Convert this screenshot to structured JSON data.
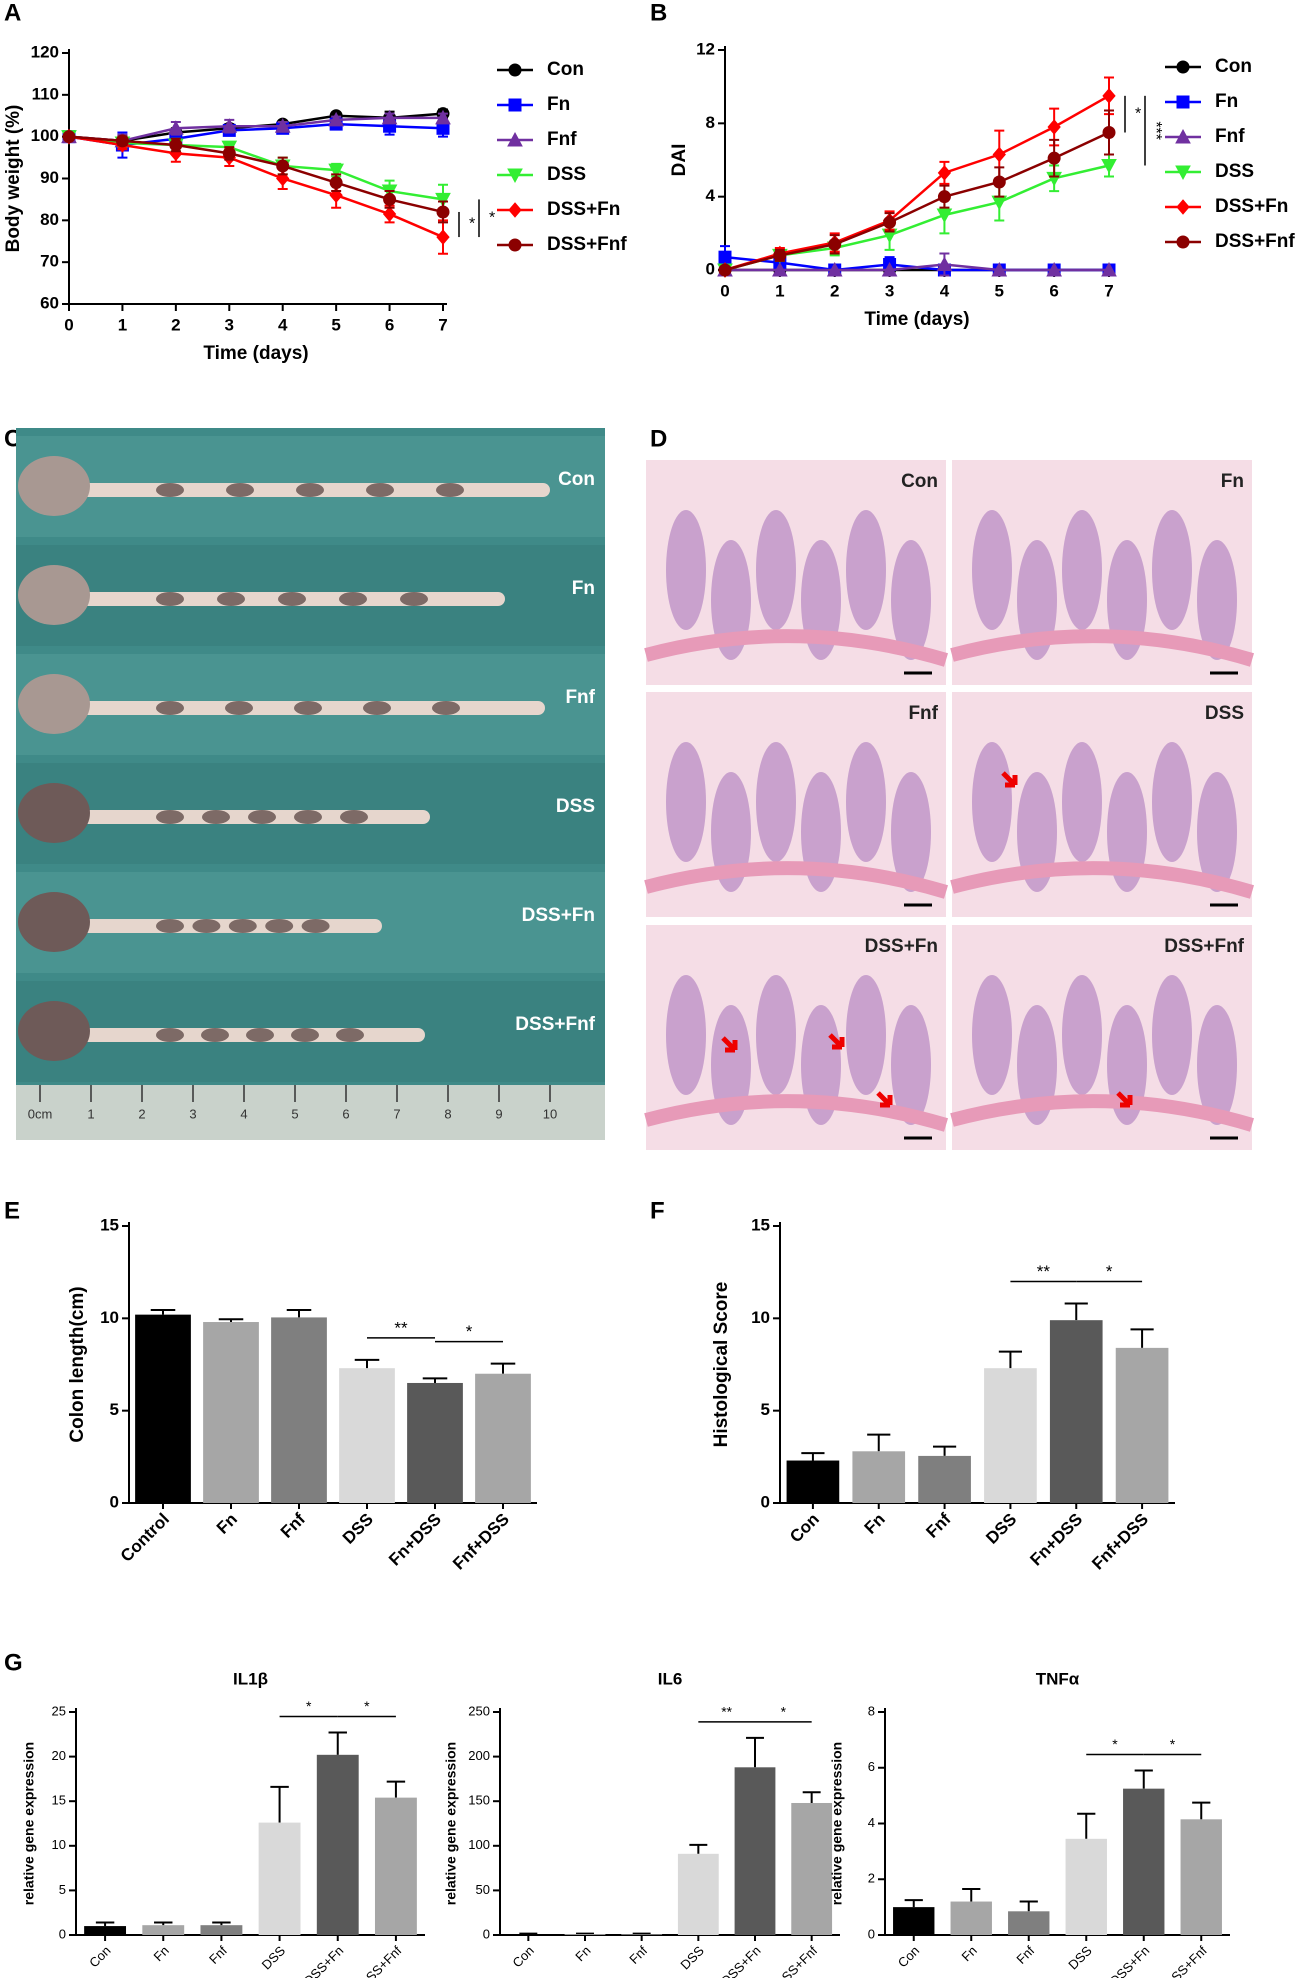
{
  "chart_data": [
    {
      "type": "line",
      "panel": "A",
      "xlabel": "Time (days)",
      "ylabel": "Body weight (%)",
      "x": [
        0,
        1,
        2,
        3,
        4,
        5,
        6,
        7
      ],
      "xlim": [
        0,
        7
      ],
      "xticks": [
        0,
        1,
        2,
        3,
        4,
        5,
        6,
        7
      ],
      "ylim": [
        60,
        120
      ],
      "yticks": [
        60,
        70,
        80,
        90,
        100,
        110,
        120
      ],
      "grid": false,
      "legend": "right",
      "series": [
        {
          "name": "Con",
          "color": "#000000",
          "marker": "circle",
          "values": [
            100,
            99,
            101,
            102,
            103,
            105,
            104.5,
            105.5
          ],
          "errors": [
            0.5,
            1,
            1,
            1,
            0.5,
            0.5,
            1.5,
            1
          ]
        },
        {
          "name": "Fn",
          "color": "#0000ff",
          "marker": "square",
          "values": [
            100,
            98,
            99.5,
            101.5,
            102,
            103,
            102.5,
            102
          ],
          "errors": [
            0.5,
            3,
            1.5,
            1,
            1,
            0.8,
            2,
            2
          ]
        },
        {
          "name": "Fnf",
          "color": "#7030a0",
          "marker": "triangle",
          "values": [
            100,
            99,
            102,
            102.5,
            102.5,
            104,
            104.5,
            104.5
          ],
          "errors": [
            0.5,
            1.5,
            1.5,
            1.5,
            1,
            0.8,
            1,
            1
          ]
        },
        {
          "name": "DSS",
          "color": "#33ee33",
          "marker": "triangle-down",
          "values": [
            100,
            98.5,
            98,
            97.5,
            93,
            92,
            87,
            85
          ],
          "errors": [
            0.5,
            1,
            1.5,
            1,
            2,
            1.5,
            2.5,
            3.5
          ]
        },
        {
          "name": "DSS+Fn",
          "color": "#ff0000",
          "marker": "diamond",
          "values": [
            100,
            98,
            96,
            95,
            90,
            86,
            81.5,
            76
          ],
          "errors": [
            0.5,
            1,
            2,
            2,
            2.5,
            3,
            2,
            4
          ]
        },
        {
          "name": "DSS+Fnf",
          "color": "#8b0000",
          "marker": "circle",
          "values": [
            100,
            99,
            98,
            96,
            93,
            89,
            85,
            82
          ],
          "errors": [
            0.5,
            1,
            1.5,
            1.5,
            2,
            2,
            2,
            2.5
          ]
        }
      ],
      "annotations": [
        {
          "text": "*",
          "between": [
            "DSS+Fn",
            "DSS+Fnf"
          ]
        },
        {
          "text": "*",
          "between": [
            "DSS+Fn",
            "DSS"
          ]
        }
      ]
    },
    {
      "type": "line",
      "panel": "B",
      "xlabel": "Time (days)",
      "ylabel": "DAI",
      "x": [
        0,
        1,
        2,
        3,
        4,
        5,
        6,
        7
      ],
      "xlim": [
        0,
        7
      ],
      "xticks": [
        0,
        1,
        2,
        3,
        4,
        5,
        6,
        7
      ],
      "ylim": [
        0,
        12
      ],
      "yticks": [
        0,
        4,
        8,
        12
      ],
      "grid": false,
      "legend": "right",
      "series": [
        {
          "name": "Con",
          "color": "#000000",
          "marker": "circle",
          "values": [
            0,
            0,
            0,
            0,
            0,
            0,
            0,
            0
          ],
          "errors": [
            0,
            0,
            0,
            0,
            0,
            0,
            0,
            0
          ]
        },
        {
          "name": "Fn",
          "color": "#0000ff",
          "marker": "square",
          "values": [
            0.7,
            0.4,
            0,
            0.3,
            0,
            0,
            0,
            0
          ],
          "errors": [
            0.6,
            0.4,
            0,
            0.4,
            0,
            0,
            0,
            0
          ]
        },
        {
          "name": "Fnf",
          "color": "#7030a0",
          "marker": "triangle",
          "values": [
            0,
            0,
            0,
            0,
            0.3,
            0,
            0,
            0
          ],
          "errors": [
            0,
            0,
            0,
            0,
            0.6,
            0,
            0,
            0
          ]
        },
        {
          "name": "DSS",
          "color": "#33ee33",
          "marker": "triangle-down",
          "values": [
            0,
            0.8,
            1.2,
            1.9,
            3,
            3.7,
            5,
            5.7
          ],
          "errors": [
            0,
            0.3,
            0.4,
            0.8,
            1,
            1,
            0.7,
            0.6
          ]
        },
        {
          "name": "DSS+Fn",
          "color": "#ff0000",
          "marker": "diamond",
          "values": [
            0,
            0.9,
            1.5,
            2.7,
            5.3,
            6.3,
            7.8,
            9.5
          ],
          "errors": [
            0,
            0.3,
            0.5,
            0.5,
            0.6,
            1.3,
            1,
            1
          ]
        },
        {
          "name": "DSS+Fnf",
          "color": "#8b0000",
          "marker": "circle",
          "values": [
            0,
            0.8,
            1.4,
            2.6,
            4,
            4.8,
            6.1,
            7.5
          ],
          "errors": [
            0,
            0.3,
            0.5,
            0.5,
            0.6,
            0.8,
            1,
            1.2
          ]
        }
      ],
      "annotations": [
        {
          "text": "*",
          "between": [
            "DSS+Fn",
            "DSS+Fnf"
          ]
        },
        {
          "text": "***",
          "between": [
            "DSS+Fn",
            "DSS"
          ]
        }
      ]
    },
    {
      "type": "bar",
      "panel": "E",
      "ylabel": "Colon length(cm)",
      "categories": [
        "Control",
        "Fn",
        "Fnf",
        "DSS",
        "Fn+DSS",
        "Fnf+DSS"
      ],
      "values": [
        10.2,
        9.8,
        10.05,
        7.3,
        6.5,
        7.0
      ],
      "errors": [
        0.25,
        0.15,
        0.4,
        0.45,
        0.25,
        0.55
      ],
      "colors": [
        "#000000",
        "#a6a6a6",
        "#7f7f7f",
        "#d9d9d9",
        "#595959",
        "#a6a6a6"
      ],
      "ylim": [
        0,
        15
      ],
      "yticks": [
        0,
        5,
        10,
        15
      ],
      "grid": false,
      "annotations": [
        {
          "text": "**",
          "between": [
            "DSS",
            "Fn+DSS"
          ]
        },
        {
          "text": "*",
          "between": [
            "Fn+DSS",
            "Fnf+DSS"
          ]
        }
      ]
    },
    {
      "type": "bar",
      "panel": "F",
      "ylabel": "Histological Score",
      "categories": [
        "Con",
        "Fn",
        "Fnf",
        "DSS",
        "Fn+DSS",
        "Fnf+DSS"
      ],
      "values": [
        2.3,
        2.8,
        2.55,
        7.3,
        9.9,
        8.4
      ],
      "errors": [
        0.4,
        0.9,
        0.5,
        0.9,
        0.9,
        1.0
      ],
      "colors": [
        "#000000",
        "#a6a6a6",
        "#7f7f7f",
        "#d9d9d9",
        "#595959",
        "#a6a6a6"
      ],
      "ylim": [
        0,
        15
      ],
      "yticks": [
        0,
        5,
        10,
        15
      ],
      "grid": false,
      "annotations": [
        {
          "text": "**",
          "between": [
            "DSS",
            "Fn+DSS"
          ]
        },
        {
          "text": "*",
          "between": [
            "Fn+DSS",
            "Fnf+DSS"
          ]
        }
      ]
    },
    {
      "type": "bar",
      "panel": "G",
      "title": "IL1β",
      "ylabel": "relative gene expression",
      "categories": [
        "Con",
        "Fn",
        "Fnf",
        "DSS",
        "DSS+Fn",
        "DSS+Fnf"
      ],
      "values": [
        1,
        1.1,
        1.1,
        12.6,
        20.2,
        15.4
      ],
      "errors": [
        0.4,
        0.3,
        0.3,
        4,
        2.5,
        1.8
      ],
      "colors": [
        "#000000",
        "#a6a6a6",
        "#7f7f7f",
        "#d9d9d9",
        "#595959",
        "#a6a6a6"
      ],
      "ylim": [
        0,
        25
      ],
      "yticks": [
        0,
        5,
        10,
        15,
        20,
        25
      ],
      "grid": false,
      "annotations": [
        {
          "text": "*",
          "between": [
            "DSS",
            "DSS+Fn"
          ]
        },
        {
          "text": "*",
          "between": [
            "DSS+Fn",
            "DSS+Fnf"
          ]
        }
      ]
    },
    {
      "type": "bar",
      "title": "IL6",
      "ylabel": "relative gene expression",
      "categories": [
        "Con",
        "Fn",
        "Fnf",
        "DSS",
        "DSS+Fn",
        "DSS+Fnf"
      ],
      "values": [
        1,
        1,
        1,
        91,
        188,
        148
      ],
      "errors": [
        0.5,
        0.5,
        0.5,
        10,
        33,
        12
      ],
      "colors": [
        "#000000",
        "#a6a6a6",
        "#7f7f7f",
        "#d9d9d9",
        "#595959",
        "#a6a6a6"
      ],
      "ylim": [
        0,
        250
      ],
      "yticks": [
        0,
        50,
        100,
        150,
        200,
        250
      ],
      "grid": false,
      "annotations": [
        {
          "text": "**",
          "between": [
            "DSS",
            "DSS+Fn"
          ]
        },
        {
          "text": "*",
          "between": [
            "DSS+Fn",
            "DSS+Fnf"
          ]
        }
      ]
    },
    {
      "type": "bar",
      "title": "TNFα",
      "ylabel": "relative gene expression",
      "categories": [
        "Con",
        "Fn",
        "Fnf",
        "DSS",
        "DSS+Fn",
        "DSS+Fnf"
      ],
      "values": [
        1,
        1.2,
        0.85,
        3.45,
        5.25,
        4.15
      ],
      "errors": [
        0.25,
        0.45,
        0.35,
        0.9,
        0.65,
        0.6
      ],
      "colors": [
        "#000000",
        "#a6a6a6",
        "#7f7f7f",
        "#d9d9d9",
        "#595959",
        "#a6a6a6"
      ],
      "ylim": [
        0,
        8
      ],
      "yticks": [
        0,
        2,
        4,
        6,
        8
      ],
      "grid": false,
      "annotations": [
        {
          "text": "*",
          "between": [
            "DSS",
            "DSS+Fn"
          ]
        },
        {
          "text": "*",
          "between": [
            "DSS+Fn",
            "DSS+Fnf"
          ]
        }
      ]
    }
  ],
  "panel_c": {
    "panel": "C",
    "labels": [
      "Con",
      "Fn",
      "Fnf",
      "DSS",
      "DSS+Fn",
      "DSS+Fnf"
    ],
    "ruler_labels": [
      "0cm",
      "1",
      "2",
      "3",
      "4",
      "5",
      "6",
      "7",
      "8",
      "9",
      "10"
    ]
  },
  "panel_d": {
    "panel": "D",
    "labels": [
      "Con",
      "Fn",
      "Fnf",
      "DSS",
      "DSS+Fn",
      "DSS+Fnf"
    ]
  }
}
